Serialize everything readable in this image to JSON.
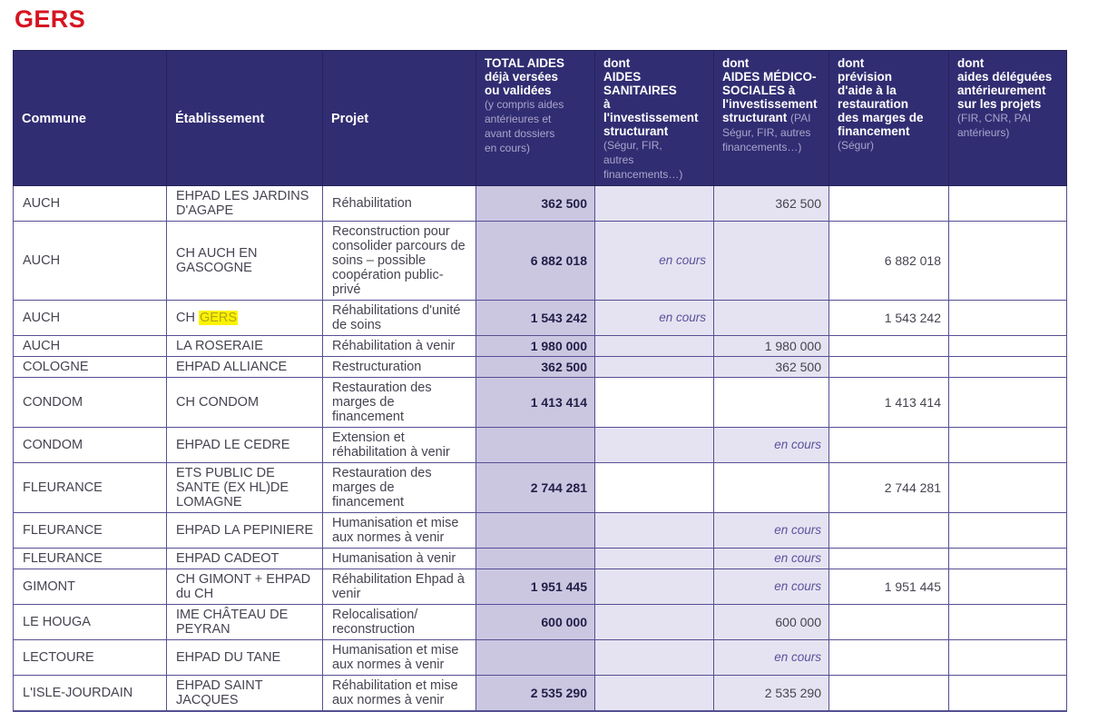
{
  "page": {
    "title": "GERS"
  },
  "colors": {
    "title_red": "#d61420",
    "header_bg": "#312d72",
    "header_text": "#ffffff",
    "header_subtext": "#a9a5cc",
    "total_col_bg": "#cbc7e1",
    "shaded_col_bg": "#e5e3f1",
    "border": "#554f93",
    "body_text": "#474350",
    "strong_number_text": "#211e47",
    "en_cours_text": "#5a519d",
    "highlight_bg": "#fcf303",
    "highlight_text": "#b2a512"
  },
  "table": {
    "en_cours_label": "en cours",
    "header": {
      "commune": "Commune",
      "etablissement": "Établissement",
      "projet": "Projet",
      "total_aides": {
        "bold": "TOTAL AIDES\ndéjà versées\nou validées\n",
        "light": "(y compris aides\nantérieures et\navant dossiers\nen cours)"
      },
      "aides_sanitaires": {
        "bold": "dont\nAIDES SANITAIRES\nà l'investissement\nstructurant\n",
        "light": "(Ségur, FIR,\nautres\nfinancements…)"
      },
      "aides_medico_sociales": {
        "bold": "dont\nAIDES MÉDICO-SOCIALES à\nl'investissement\nstructurant ",
        "light": "(PAI\nSégur, FIR, autres\nfinancements…)"
      },
      "prevision_aide": {
        "bold": "dont\nprévision\nd'aide à la\nrestauration\ndes marges de\nfinancement\n",
        "light": "(Ségur)"
      },
      "aides_deleguees": {
        "bold": "dont\naides déléguées\nantérieurement\nsur les projets\n",
        "light": "(FIR, CNR, PAI\nantérieurs)"
      }
    },
    "rows": [
      {
        "commune": "AUCH",
        "etablissement": "EHPAD LES JARDINS D'AGAPE",
        "projet": "Réhabilitation",
        "total_aides": "362 500",
        "aides_sanitaires": "",
        "aides_medico_sociales": "362 500",
        "prevision_aide": "",
        "aides_deleguees": "",
        "shaded": true
      },
      {
        "commune": "AUCH",
        "etablissement": "CH AUCH EN GASCOGNE",
        "projet": "Reconstruction pour consolider parcours de soins – possible coopération public-privé",
        "total_aides": "6 882 018",
        "aides_sanitaires": "en cours",
        "aides_medico_sociales": "",
        "prevision_aide": "6 882 018",
        "aides_deleguees": "",
        "shaded": true
      },
      {
        "commune": "AUCH",
        "etablissement": "CH GERS",
        "etablissement_highlight": "GERS",
        "projet": "Réhabilitations d'unité de soins",
        "total_aides": "1 543 242",
        "aides_sanitaires": "en cours",
        "aides_medico_sociales": "",
        "prevision_aide": "1 543 242",
        "aides_deleguees": "",
        "shaded": true
      },
      {
        "commune": "AUCH",
        "etablissement": "LA ROSERAIE",
        "projet": "Réhabilitation à venir",
        "total_aides": "1 980 000",
        "aides_sanitaires": "",
        "aides_medico_sociales": "1 980 000",
        "prevision_aide": "",
        "aides_deleguees": "",
        "shaded": true
      },
      {
        "commune": "COLOGNE",
        "etablissement": "EHPAD ALLIANCE",
        "projet": "Restructuration",
        "total_aides": "362 500",
        "aides_sanitaires": "",
        "aides_medico_sociales": "362 500",
        "prevision_aide": "",
        "aides_deleguees": "",
        "shaded": true
      },
      {
        "commune": "CONDOM",
        "etablissement": "CH CONDOM",
        "projet": "Restauration des marges de financement",
        "total_aides": "1 413 414",
        "aides_sanitaires": "",
        "aides_medico_sociales": "",
        "prevision_aide": "1 413 414",
        "aides_deleguees": "",
        "shaded": false
      },
      {
        "commune": "CONDOM",
        "etablissement": "EHPAD LE CEDRE",
        "projet": "Extension et réhabilitation à venir",
        "total_aides": "",
        "aides_sanitaires": "",
        "aides_medico_sociales": "en cours",
        "prevision_aide": "",
        "aides_deleguees": "",
        "shaded": true
      },
      {
        "commune": "FLEURANCE",
        "etablissement": "ETS PUBLIC DE SANTE (EX HL)DE LOMAGNE",
        "projet": "Restauration des marges de financement",
        "total_aides": "2 744 281",
        "aides_sanitaires": "",
        "aides_medico_sociales": "",
        "prevision_aide": "2 744 281",
        "aides_deleguees": "",
        "shaded": false
      },
      {
        "commune": "FLEURANCE",
        "etablissement": "EHPAD LA PEPINIERE",
        "projet": "Humanisation et mise aux normes à venir",
        "total_aides": "",
        "aides_sanitaires": "",
        "aides_medico_sociales": "en cours",
        "prevision_aide": "",
        "aides_deleguees": "",
        "shaded": true
      },
      {
        "commune": "FLEURANCE",
        "etablissement": "EHPAD CADEOT",
        "projet": "Humanisation à venir",
        "total_aides": "",
        "aides_sanitaires": "",
        "aides_medico_sociales": "en cours",
        "prevision_aide": "",
        "aides_deleguees": "",
        "shaded": true
      },
      {
        "commune": "GIMONT",
        "etablissement": "CH GIMONT + EHPAD du CH",
        "projet": "Réhabilitation Ehpad à venir",
        "total_aides": "1 951 445",
        "aides_sanitaires": "",
        "aides_medico_sociales": "en cours",
        "prevision_aide": "1 951 445",
        "aides_deleguees": "",
        "shaded": true
      },
      {
        "commune": "LE HOUGA",
        "etablissement": "IME CHÂTEAU DE PEYRAN",
        "projet": "Relocalisation/ reconstruction",
        "total_aides": "600 000",
        "aides_sanitaires": "",
        "aides_medico_sociales": "600 000",
        "prevision_aide": "",
        "aides_deleguees": "",
        "shaded": true
      },
      {
        "commune": "LECTOURE",
        "etablissement": "EHPAD  DU TANE",
        "projet": "Humanisation et mise aux normes à venir",
        "total_aides": "",
        "aides_sanitaires": "",
        "aides_medico_sociales": "en cours",
        "prevision_aide": "",
        "aides_deleguees": "",
        "shaded": true
      },
      {
        "commune": "L'ISLE-JOURDAIN",
        "etablissement": "EHPAD SAINT JACQUES",
        "projet": "Réhabilitation et mise aux normes à venir",
        "total_aides": "2 535 290",
        "aides_sanitaires": "",
        "aides_medico_sociales": "2 535 290",
        "prevision_aide": "",
        "aides_deleguees": "",
        "shaded": true
      }
    ]
  }
}
